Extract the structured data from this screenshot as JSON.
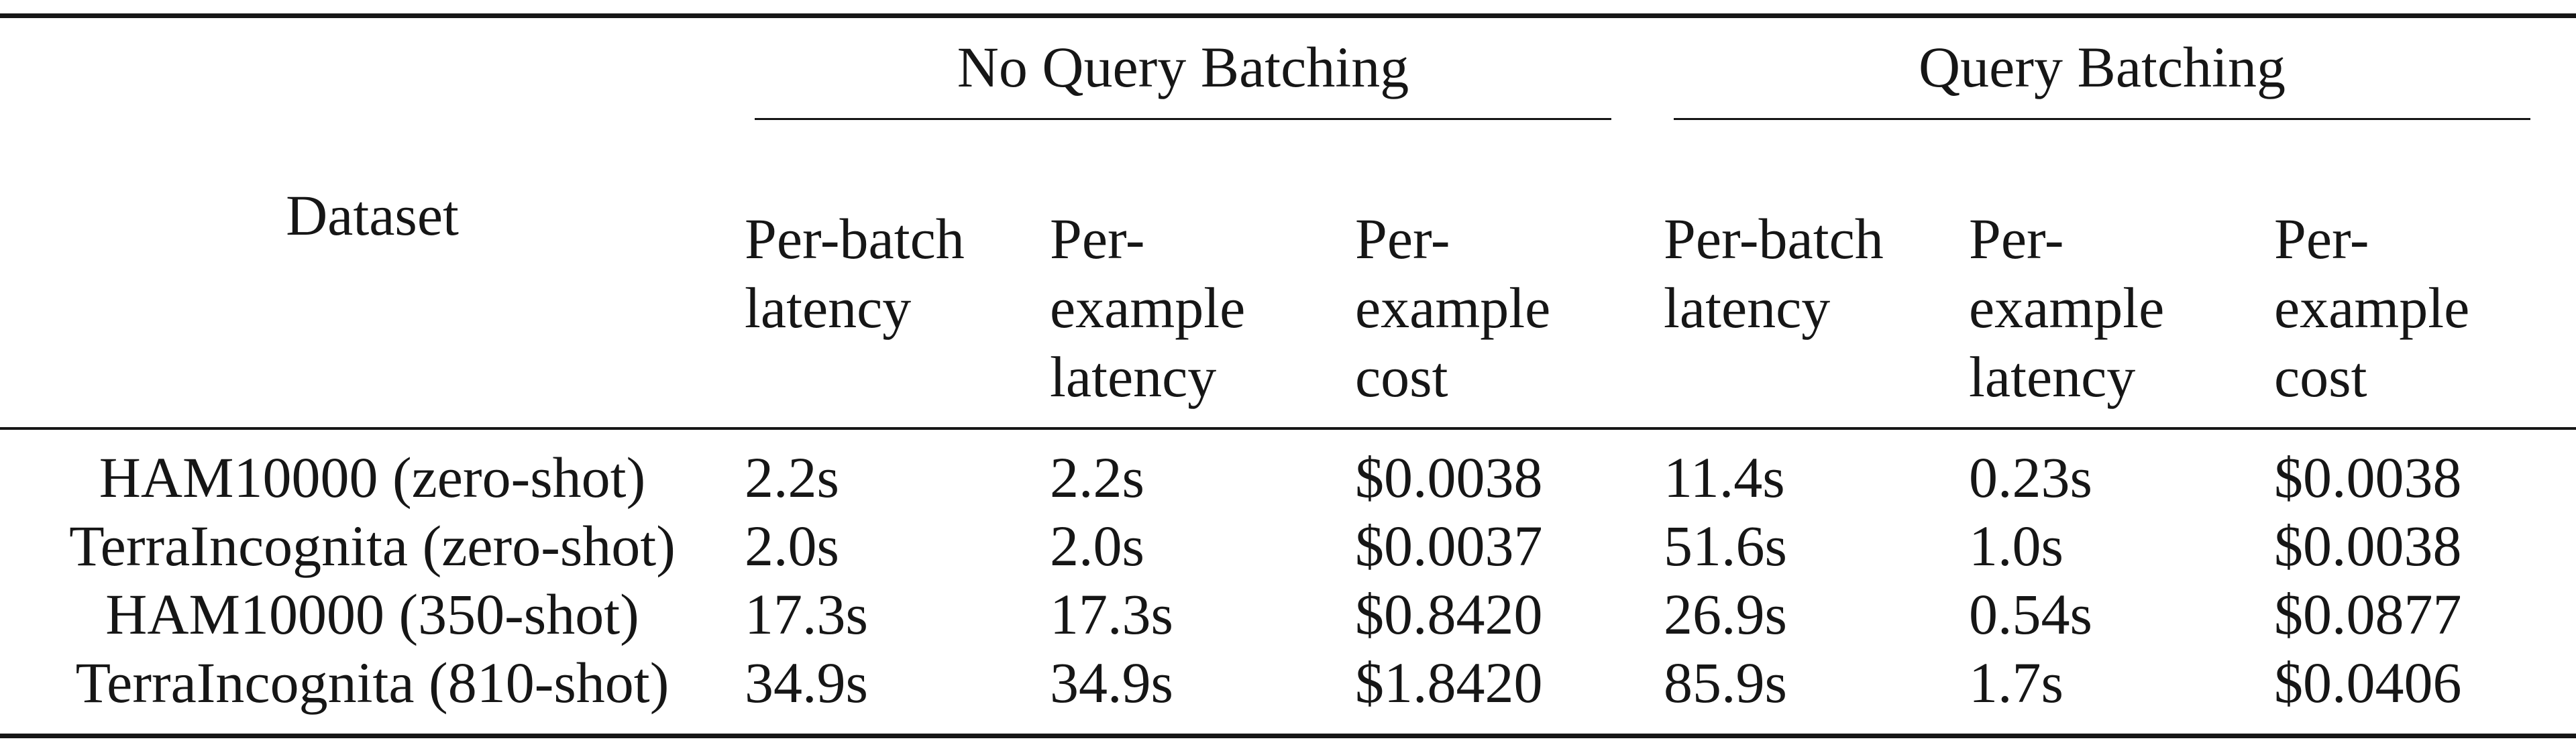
{
  "table": {
    "row_header_label": "Dataset",
    "groups": [
      {
        "title": "No Query Batching",
        "columns": [
          "Per-batch\nlatency",
          "Per-\nexample\nlatency",
          "Per-\nexample\ncost"
        ]
      },
      {
        "title": "Query Batching",
        "columns": [
          "Per-batch\nlatency",
          "Per-\nexample\nlatency",
          "Per-\nexample\ncost"
        ]
      }
    ],
    "rows": [
      {
        "dataset": "HAM10000 (zero-shot)",
        "values": [
          "2.2s",
          "2.2s",
          "$0.0038",
          "11.4s",
          "0.23s",
          "$0.0038"
        ]
      },
      {
        "dataset": "TerraIncognita (zero-shot)",
        "values": [
          "2.0s",
          "2.0s",
          "$0.0037",
          "51.6s",
          "1.0s",
          "$0.0038"
        ]
      },
      {
        "dataset": "HAM10000 (350-shot)",
        "values": [
          "17.3s",
          "17.3s",
          "$0.8420",
          "26.9s",
          "0.54s",
          "$0.0877"
        ]
      },
      {
        "dataset": "TerraIncognita (810-shot)",
        "values": [
          "34.9s",
          "34.9s",
          "$1.8420",
          "85.9s",
          "1.7s",
          "$0.0406"
        ]
      }
    ]
  }
}
